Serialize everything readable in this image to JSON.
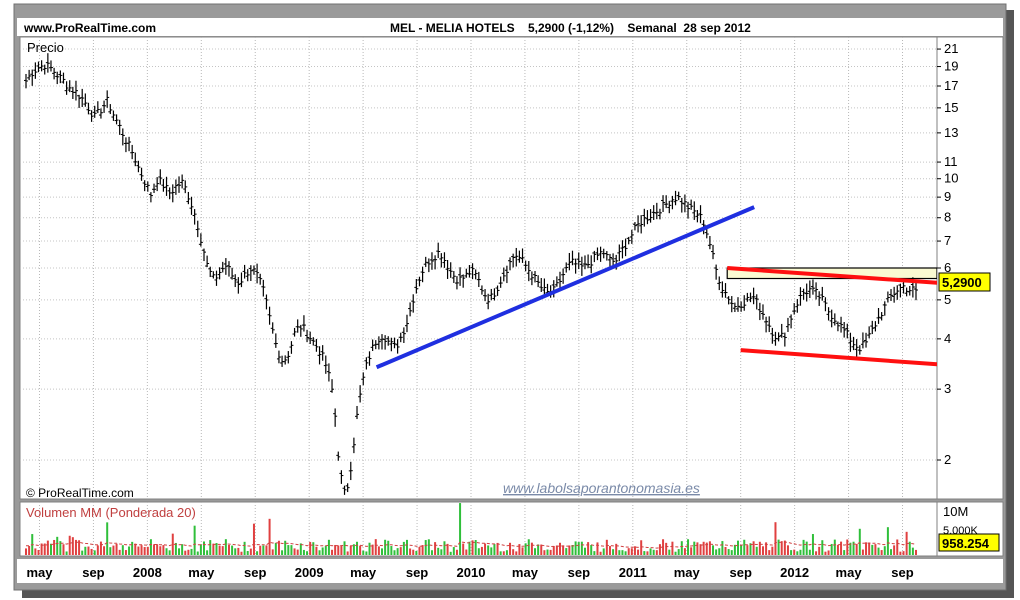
{
  "header": {
    "site": "www.ProRealTime.com",
    "title": "MEL - MELIA HOTELS    5,2900 (-1,12%)    Semanal  28 sep 2012"
  },
  "price_panel": {
    "label": "Precio",
    "copyright": "© ProRealTime.com",
    "watermark": "www.labolsaporantonomasia.es",
    "last_price_badge": "5,2900"
  },
  "volume_panel": {
    "label": "Volumen MM (Ponderada 20)",
    "axis_top": "10M",
    "axis_partial": "5.000K",
    "last_volume_badge": "958.254"
  },
  "x_axis": {
    "ticks": [
      "may",
      "sep",
      "2008",
      "may",
      "sep",
      "2009",
      "may",
      "sep",
      "2010",
      "may",
      "sep",
      "2011",
      "may",
      "sep",
      "2012",
      "may",
      "sep"
    ]
  },
  "colors": {
    "up_bar": "#2fbf3a",
    "down_bar": "#e04040",
    "price_line": "#000000",
    "support_trend": "#1f2fe0",
    "channel": "#ff1010",
    "resistance_zone": "#fafad2",
    "watermark": "#7a8aa8",
    "volume_label": "#c04040"
  },
  "chart_data": [
    {
      "type": "line",
      "title": "MEL - MELIA HOTELS",
      "scale": "log",
      "x_period": "weekly",
      "x_range": [
        "2007-04",
        "2012-09-28"
      ],
      "yticks": [
        2,
        3,
        4,
        5,
        6,
        7,
        8,
        9,
        10,
        11,
        13,
        15,
        17,
        19,
        21
      ],
      "ylim": [
        1.6,
        22.5
      ],
      "last_value": 5.29,
      "change_pct": -1.12,
      "series": [
        {
          "values": [
            17.5,
            18.4,
            18.9,
            19.2,
            18.8,
            18.1,
            17.5,
            16.8,
            16.4,
            15.8,
            15.0,
            14.2,
            14.9,
            15.6,
            14.4,
            13.4,
            12.4,
            11.6,
            10.6,
            9.8,
            9.1,
            10.0,
            9.6,
            9.2,
            9.6,
            9.8,
            9.0,
            8.1,
            7.0,
            6.0,
            5.6,
            5.9,
            6.1,
            5.7,
            5.5,
            5.8,
            6.0,
            5.7,
            5.2,
            4.4,
            3.8,
            3.5,
            3.7,
            4.2,
            4.3,
            4.1,
            3.9,
            3.7,
            3.4,
            2.9,
            1.9,
            1.6,
            2.0,
            2.7,
            3.3,
            3.7,
            4.0,
            4.1,
            3.9,
            3.8,
            4.1,
            4.5,
            5.2,
            5.8,
            6.2,
            6.4,
            6.6,
            6.2,
            5.8,
            5.6,
            5.7,
            5.9,
            5.7,
            5.2,
            5.0,
            5.3,
            5.7,
            6.1,
            6.5,
            6.3,
            6.0,
            5.7,
            5.4,
            5.2,
            5.2,
            5.5,
            5.9,
            6.2,
            6.1,
            6.0,
            6.2,
            6.4,
            6.6,
            6.3,
            6.2,
            6.6,
            7.0,
            7.4,
            7.8,
            8.0,
            8.2,
            8.4,
            8.6,
            8.9,
            9.0,
            8.7,
            8.4,
            8.2,
            7.9,
            7.0,
            6.0,
            5.4,
            5.1,
            4.8,
            4.9,
            5.0,
            5.1,
            4.8,
            4.5,
            4.2,
            4.0,
            4.1,
            4.5,
            4.9,
            5.2,
            5.3,
            5.2,
            5.0,
            4.7,
            4.5,
            4.3,
            4.1,
            3.9,
            3.8,
            3.9,
            4.2,
            4.5,
            4.8,
            5.1,
            5.3,
            5.4,
            5.3,
            5.29
          ]
        }
      ],
      "annotations": [
        {
          "kind": "trendline",
          "color": "blue",
          "from": [
            "2009-06",
            3.4
          ],
          "to": [
            "2011-10",
            8.5
          ]
        },
        {
          "kind": "channel-top",
          "color": "red",
          "from": [
            "2011-08",
            6.0
          ],
          "to": [
            "2012-12",
            5.5
          ]
        },
        {
          "kind": "channel-bottom",
          "color": "red",
          "from": [
            "2011-09",
            3.75
          ],
          "to": [
            "2012-12",
            3.45
          ]
        },
        {
          "kind": "resistance-zone",
          "from_value": 5.65,
          "to_value": 6.0
        }
      ]
    },
    {
      "type": "bar",
      "title": "Volumen MM (Ponderada 20)",
      "x_period": "weekly",
      "ylim": [
        0,
        10000000
      ],
      "last_value": 958254
    }
  ]
}
